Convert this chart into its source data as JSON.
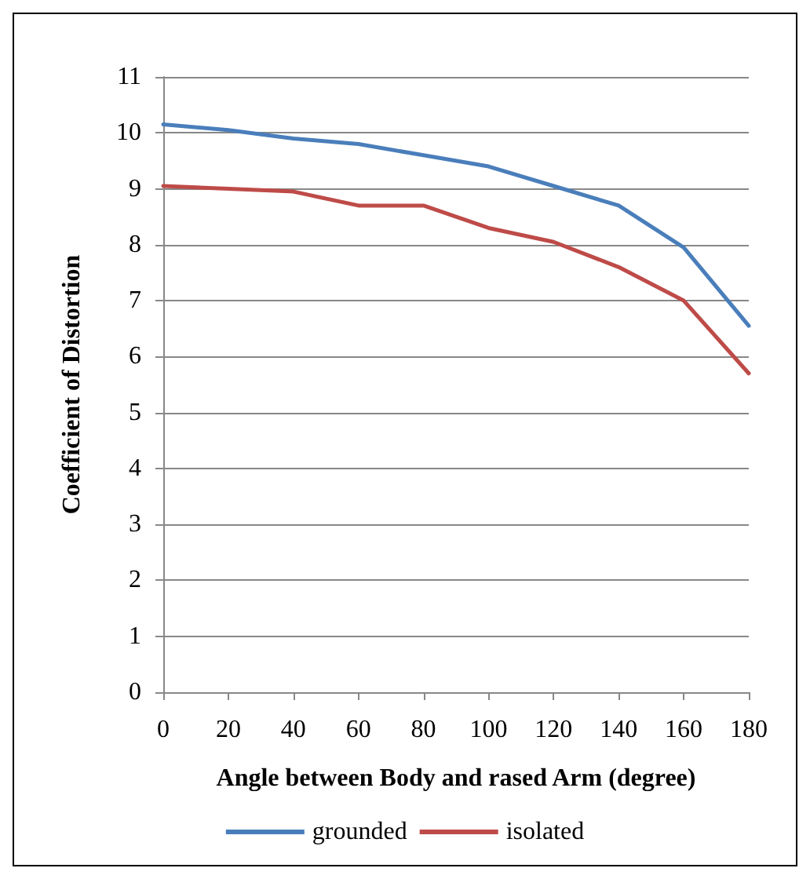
{
  "chart_data": {
    "type": "line",
    "xlabel": "Angle between Body and rased Arm (degree)",
    "ylabel": "Coefficient of Distortion",
    "x": [
      0,
      20,
      40,
      60,
      80,
      100,
      120,
      140,
      160,
      180
    ],
    "series": [
      {
        "name": "grounded",
        "color": "#4a7ebb",
        "values": [
          10.15,
          10.05,
          9.9,
          9.8,
          9.6,
          9.4,
          9.05,
          8.7,
          7.95,
          6.55
        ]
      },
      {
        "name": "isolated",
        "color": "#be4b48",
        "values": [
          9.05,
          9.0,
          8.95,
          8.7,
          8.7,
          8.3,
          8.05,
          7.6,
          7.0,
          5.7
        ]
      }
    ],
    "xlim": [
      0,
      180
    ],
    "xticks": [
      0,
      20,
      40,
      60,
      80,
      100,
      120,
      140,
      160,
      180
    ],
    "ylim": [
      0,
      11
    ],
    "yticks": [
      0,
      1,
      2,
      3,
      4,
      5,
      6,
      7,
      8,
      9,
      10,
      11
    ],
    "grid": "y",
    "legend": "bottom",
    "marker": "none",
    "line_style": "solid"
  }
}
